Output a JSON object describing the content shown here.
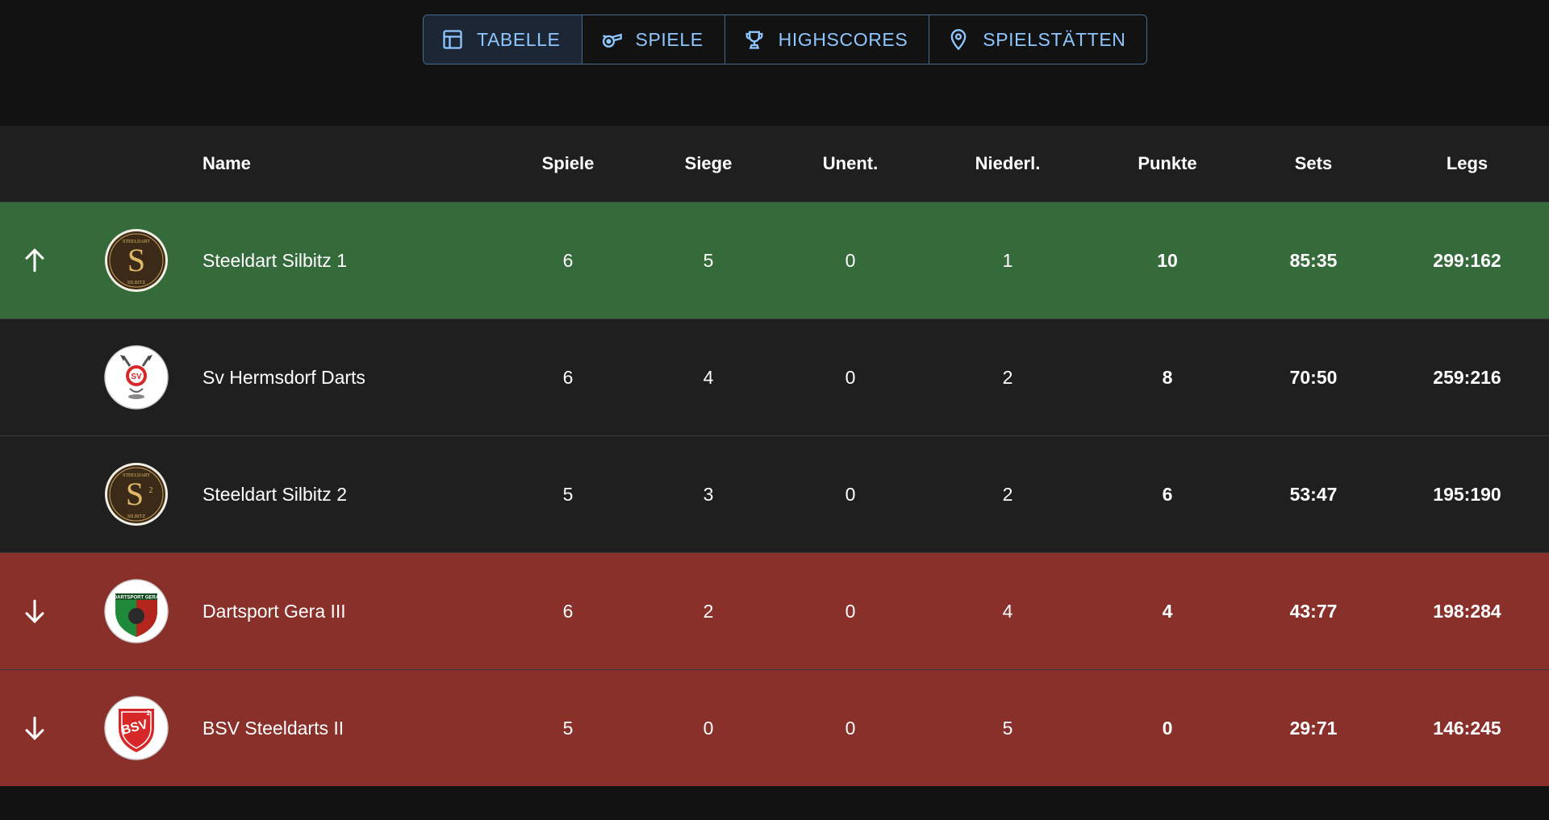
{
  "nav": {
    "tabs": [
      {
        "label": "TABELLE",
        "icon": "table-icon",
        "active": true
      },
      {
        "label": "SPIELE",
        "icon": "whistle-icon",
        "active": false
      },
      {
        "label": "HIGHSCORES",
        "icon": "trophy-icon",
        "active": false
      },
      {
        "label": "SPIELSTÄTTEN",
        "icon": "location-pin-icon",
        "active": false
      }
    ]
  },
  "table": {
    "headers": {
      "name": "Name",
      "spiele": "Spiele",
      "siege": "Siege",
      "unent": "Unent.",
      "nieder": "Niederl.",
      "punkte": "Punkte",
      "sets": "Sets",
      "legs": "Legs"
    },
    "rows": [
      {
        "trend": "up",
        "logo": "steeldart-silbitz-logo",
        "logo_text": "STEELDART SILBITZ",
        "name": "Steeldart Silbitz 1",
        "spiele": "6",
        "siege": "5",
        "unent": "0",
        "nieder": "1",
        "punkte": "10",
        "sets": "85:35",
        "legs": "299:162"
      },
      {
        "trend": "none",
        "logo": "sv-hermsdorf-logo",
        "logo_text": "SV",
        "name": "Sv Hermsdorf Darts",
        "spiele": "6",
        "siege": "4",
        "unent": "0",
        "nieder": "2",
        "punkte": "8",
        "sets": "70:50",
        "legs": "259:216"
      },
      {
        "trend": "none",
        "logo": "steeldart-silbitz-2-logo",
        "logo_text": "STEELDART SILBITZ 2",
        "name": "Steeldart Silbitz 2",
        "spiele": "5",
        "siege": "3",
        "unent": "0",
        "nieder": "2",
        "punkte": "6",
        "sets": "53:47",
        "legs": "195:190"
      },
      {
        "trend": "down",
        "logo": "dartsport-gera-logo",
        "logo_text": "DARTSPORT GERA",
        "name": "Dartsport Gera III",
        "spiele": "6",
        "siege": "2",
        "unent": "0",
        "nieder": "4",
        "punkte": "4",
        "sets": "43:77",
        "legs": "198:284"
      },
      {
        "trend": "down",
        "logo": "bsv-steeldarts-logo",
        "logo_text": "BSV 2",
        "name": "BSV Steeldarts II",
        "spiele": "5",
        "siege": "0",
        "unent": "0",
        "nieder": "5",
        "punkte": "0",
        "sets": "29:71",
        "legs": "146:245"
      }
    ]
  },
  "colors": {
    "background": "#121212",
    "header_bg": "#1f1f1f",
    "promotion": "#356a3b",
    "relegation": "#8a302b",
    "accent": "#8ec6ff"
  }
}
